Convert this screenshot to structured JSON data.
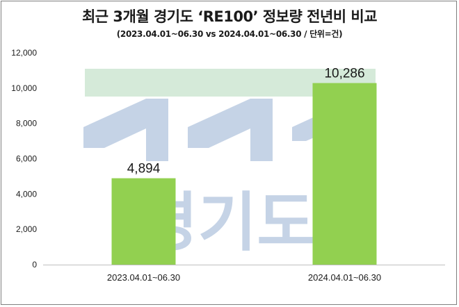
{
  "chart_data": {
    "type": "bar",
    "title": "최근 3개월 경기도 ‘RE100’ 정보량 전년비 비교",
    "subtitle": "(2023.04.01~06.30 vs 2024.04.01~06.30 / 단위=건)",
    "categories": [
      "2023.04.01~06.30",
      "2024.04.01~06.30"
    ],
    "values": [
      4894,
      10286
    ],
    "data_labels": [
      "4,894",
      "10,286"
    ],
    "ylim": [
      0,
      12000
    ],
    "yticks": [
      0,
      2000,
      4000,
      6000,
      8000,
      10000,
      12000
    ],
    "ytick_labels": [
      "0",
      "2,000",
      "4,000",
      "6,000",
      "8,000",
      "10,000",
      "12,000"
    ],
    "grid": false,
    "legend": "none",
    "bar_color": "#92d050"
  },
  "watermark": {
    "text": "경기도",
    "band_color": "#d5ead9",
    "shape_color": "#c5d3e6"
  }
}
